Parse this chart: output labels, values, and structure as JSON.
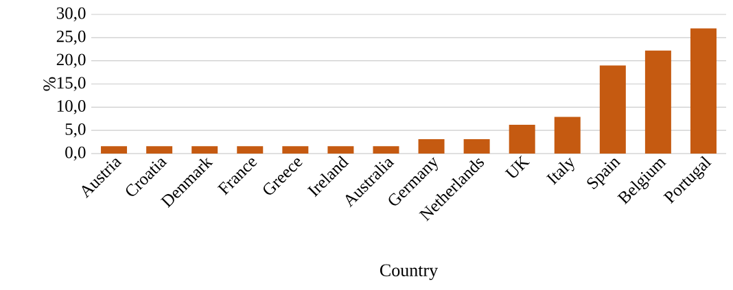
{
  "chart_data": {
    "type": "bar",
    "xlabel": "Country",
    "ylabel": "%",
    "categories": [
      "Austria",
      "Croatia",
      "Denmark",
      "France",
      "Greece",
      "Ireland",
      "Australia",
      "Germany",
      "Netherlands",
      "UK",
      "Italy",
      "Spain",
      "Belgium",
      "Portugal"
    ],
    "values": [
      1.6,
      1.6,
      1.6,
      1.6,
      1.6,
      1.6,
      1.6,
      3.1,
      3.1,
      6.2,
      7.9,
      19.0,
      22.2,
      27.0
    ],
    "color": "#c55a11",
    "ylim": [
      0,
      30
    ],
    "yticks": [
      {
        "value": 0,
        "label": "0,0"
      },
      {
        "value": 5,
        "label": "5,0"
      },
      {
        "value": 10,
        "label": "10,0"
      },
      {
        "value": 15,
        "label": "15,0"
      },
      {
        "value": 20,
        "label": "20,0"
      },
      {
        "value": 25,
        "label": "25,0"
      },
      {
        "value": 30,
        "label": "30,0"
      }
    ],
    "grid": "y"
  }
}
